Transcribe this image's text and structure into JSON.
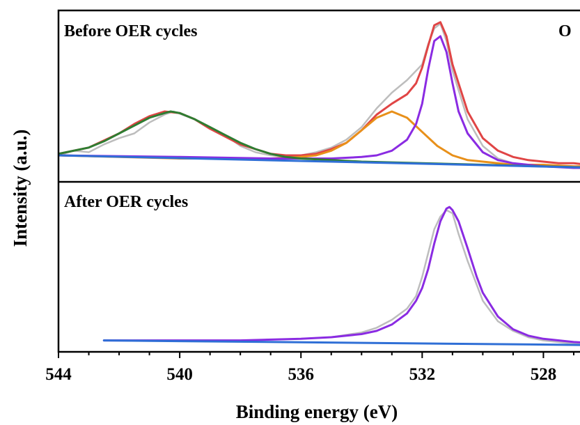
{
  "chart_data": {
    "type": "line",
    "xlabel": "Binding energy (eV)",
    "ylabel": "Intensity (a.u.)",
    "xlim": [
      544,
      526
    ],
    "x_reversed": true,
    "xticks": [
      "544",
      "540",
      "536",
      "532",
      "528"
    ],
    "xtick_values": [
      544,
      540,
      536,
      532,
      528
    ],
    "panels": [
      {
        "id": "before",
        "label": "Before OER cycles",
        "corner_label": "O",
        "ylim": [
          0,
          1
        ],
        "series": [
          {
            "role": "raw",
            "color": "#bdbdbd",
            "x": [
              544,
              543.5,
              543,
              542.5,
              542,
              541.5,
              541,
              540.5,
              540.2,
              539.5,
              539,
              538.5,
              538,
              537.5,
              537,
              536.5,
              536,
              535.5,
              535,
              534.5,
              534,
              533.5,
              533,
              532.5,
              532,
              531.8,
              531.6,
              531.4,
              531.2,
              531,
              530.5,
              530,
              529.5,
              529,
              528.5,
              528,
              527.5,
              527,
              526.5,
              526
            ],
            "y": [
              0.12,
              0.15,
              0.14,
              0.19,
              0.23,
              0.26,
              0.33,
              0.38,
              0.4,
              0.35,
              0.29,
              0.25,
              0.18,
              0.14,
              0.12,
              0.11,
              0.12,
              0.14,
              0.17,
              0.22,
              0.3,
              0.42,
              0.52,
              0.6,
              0.7,
              0.83,
              0.93,
              0.96,
              0.85,
              0.66,
              0.35,
              0.18,
              0.1,
              0.07,
              0.06,
              0.05,
              0.05,
              0.04,
              0.04,
              0.04
            ]
          },
          {
            "role": "envelope",
            "color": "#e04545",
            "x": [
              544,
              543,
              542,
              541.5,
              541,
              540.5,
              540,
              539.5,
              539,
              538.5,
              538,
              537.5,
              537,
              536.5,
              536,
              535.5,
              535,
              534.5,
              534,
              533.5,
              533,
              532.5,
              532.2,
              532,
              531.8,
              531.6,
              531.4,
              531.2,
              531,
              530.5,
              530,
              529.5,
              529,
              528.5,
              528,
              527.5,
              527,
              526.5,
              526
            ],
            "y": [
              0.13,
              0.17,
              0.26,
              0.32,
              0.37,
              0.4,
              0.39,
              0.35,
              0.29,
              0.24,
              0.19,
              0.16,
              0.13,
              0.12,
              0.12,
              0.13,
              0.16,
              0.2,
              0.28,
              0.38,
              0.45,
              0.51,
              0.58,
              0.68,
              0.82,
              0.95,
              0.97,
              0.88,
              0.7,
              0.4,
              0.23,
              0.15,
              0.11,
              0.09,
              0.08,
              0.07,
              0.07,
              0.06,
              0.06
            ]
          },
          {
            "role": "component",
            "color": "#e8901a",
            "x": [
              544,
              540,
              538,
              537,
              536,
              535.5,
              535,
              534.5,
              534,
              533.5,
              533,
              532.5,
              532,
              531.5,
              531,
              530.5,
              530,
              529.5,
              529,
              528.5,
              528,
              527,
              526
            ],
            "y": [
              0.12,
              0.1,
              0.1,
              0.1,
              0.11,
              0.12,
              0.15,
              0.2,
              0.28,
              0.36,
              0.4,
              0.36,
              0.27,
              0.18,
              0.12,
              0.09,
              0.08,
              0.07,
              0.06,
              0.06,
              0.06,
              0.05,
              0.05
            ]
          },
          {
            "role": "component",
            "color": "#8a2be2",
            "x": [
              544,
              540,
              537,
              535,
              534,
              533.5,
              533,
              532.5,
              532.2,
              532,
              531.8,
              531.6,
              531.4,
              531.2,
              531,
              530.8,
              530.5,
              530,
              529.5,
              529,
              528.5,
              528,
              527,
              526
            ],
            "y": [
              0.12,
              0.11,
              0.1,
              0.1,
              0.11,
              0.12,
              0.15,
              0.22,
              0.32,
              0.45,
              0.67,
              0.85,
              0.88,
              0.78,
              0.58,
              0.4,
              0.26,
              0.14,
              0.09,
              0.07,
              0.06,
              0.05,
              0.04,
              0.04
            ]
          },
          {
            "role": "component",
            "color": "#2e7d32",
            "x": [
              544,
              543,
              542.5,
              542,
              541.5,
              541,
              540.5,
              540.3,
              540,
              539.5,
              539,
              538.5,
              538,
              537.5,
              537,
              536.5,
              536,
              535,
              534,
              532,
              530,
              528,
              526
            ],
            "y": [
              0.13,
              0.17,
              0.21,
              0.26,
              0.31,
              0.36,
              0.39,
              0.4,
              0.39,
              0.35,
              0.3,
              0.25,
              0.2,
              0.16,
              0.13,
              0.11,
              0.1,
              0.09,
              0.08,
              0.07,
              0.06,
              0.05,
              0.04
            ]
          },
          {
            "role": "baseline",
            "color": "#2f6fd6",
            "x": [
              544,
              526
            ],
            "y": [
              0.12,
              0.04
            ]
          }
        ]
      },
      {
        "id": "after",
        "label": "After OER cycles",
        "ylim": [
          0,
          1
        ],
        "series": [
          {
            "role": "raw",
            "color": "#bdbdbd",
            "x": [
              542.5,
              540,
              538,
              536,
              535,
              534,
              533.5,
              533,
              532.5,
              532.2,
              532,
              531.8,
              531.6,
              531.4,
              531.2,
              531,
              530.8,
              530.5,
              530.2,
              530,
              529.5,
              529,
              528.5,
              528,
              527,
              526
            ],
            "y": [
              0.05,
              0.05,
              0.05,
              0.06,
              0.07,
              0.1,
              0.13,
              0.18,
              0.25,
              0.33,
              0.45,
              0.6,
              0.75,
              0.83,
              0.87,
              0.85,
              0.72,
              0.55,
              0.4,
              0.3,
              0.17,
              0.11,
              0.07,
              0.05,
              0.03,
              0.03
            ]
          },
          {
            "role": "component",
            "color": "#8a2be2",
            "x": [
              542.5,
              540,
              538,
              536,
              535,
              534,
              533.5,
              533,
              532.5,
              532.2,
              532,
              531.8,
              531.6,
              531.4,
              531.2,
              531.1,
              531,
              530.8,
              530.5,
              530.2,
              530,
              529.5,
              529,
              528.5,
              528,
              527,
              526
            ],
            "y": [
              0.05,
              0.05,
              0.05,
              0.06,
              0.07,
              0.09,
              0.11,
              0.15,
              0.22,
              0.3,
              0.38,
              0.5,
              0.66,
              0.8,
              0.88,
              0.89,
              0.87,
              0.8,
              0.63,
              0.45,
              0.35,
              0.2,
              0.12,
              0.08,
              0.06,
              0.04,
              0.03
            ]
          },
          {
            "role": "baseline",
            "color": "#2f6fd6",
            "x": [
              542.5,
              526
            ],
            "y": [
              0.05,
              0.02
            ]
          }
        ]
      }
    ]
  }
}
